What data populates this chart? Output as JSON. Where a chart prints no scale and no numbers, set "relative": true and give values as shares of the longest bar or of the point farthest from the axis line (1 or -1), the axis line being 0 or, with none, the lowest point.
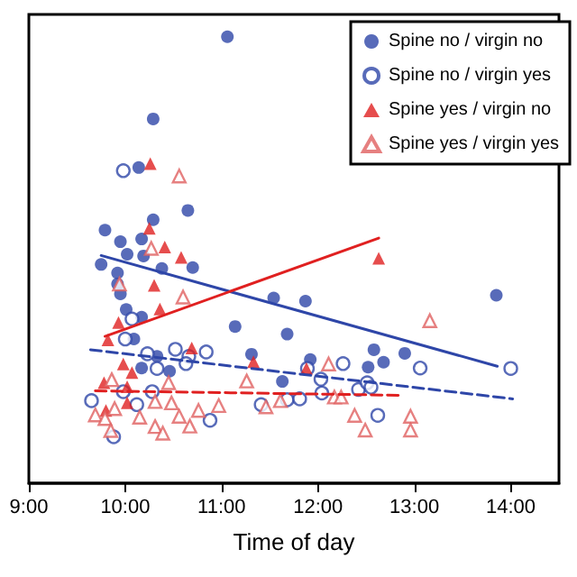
{
  "chart_data": {
    "type": "scatter",
    "xlabel": "Time of day",
    "relative": true,
    "legend": "top right",
    "grid": false,
    "xlim": [
      9,
      14.5
    ],
    "xticks": [
      {
        "value": 9,
        "label": "9:00"
      },
      {
        "value": 10,
        "label": "10:00"
      },
      {
        "value": 11,
        "label": "11:00"
      },
      {
        "value": 12,
        "label": "12:00"
      },
      {
        "value": 13,
        "label": "13:00"
      },
      {
        "value": 14,
        "label": "14:00"
      }
    ],
    "series": [
      {
        "name": "Spine no / virgin no",
        "color": "#2e46a8",
        "marker": "circle",
        "x": [
          11.06,
          10.29,
          10.14,
          10.65,
          10.29,
          9.79,
          9.95,
          10.17,
          10.02,
          10.19,
          9.75,
          9.92,
          10.38,
          10.7,
          9.92,
          9.95,
          10.01,
          10.17,
          10.09,
          10.33,
          10.17,
          10.46,
          11.54,
          11.87,
          11.14,
          11.68,
          11.31,
          11.92,
          11.63,
          12.58,
          12.9,
          12.68,
          12.52,
          13.85
        ],
        "values": [
          1.0,
          0.816,
          0.707,
          0.611,
          0.59,
          0.567,
          0.541,
          0.547,
          0.513,
          0.509,
          0.49,
          0.471,
          0.481,
          0.483,
          0.446,
          0.424,
          0.389,
          0.372,
          0.323,
          0.284,
          0.258,
          0.251,
          0.415,
          0.408,
          0.351,
          0.334,
          0.289,
          0.277,
          0.228,
          0.299,
          0.291,
          0.271,
          0.26,
          0.421
        ]
      },
      {
        "name": "Spine no / virgin yes",
        "color": "#2e46a8",
        "marker": "circle-open",
        "x": [
          9.98,
          10.07,
          10.0,
          10.23,
          10.33,
          10.52,
          10.66,
          10.63,
          10.84,
          9.65,
          9.98,
          10.12,
          10.28,
          9.88,
          10.88,
          11.41,
          11.68,
          11.81,
          12.03,
          12.04,
          12.26,
          12.42,
          12.51,
          12.55,
          12.62,
          13.06,
          14.0,
          11.89
        ],
        "values": [
          0.7,
          0.368,
          0.323,
          0.29,
          0.257,
          0.3,
          0.284,
          0.268,
          0.294,
          0.185,
          0.205,
          0.176,
          0.205,
          0.104,
          0.141,
          0.176,
          0.187,
          0.189,
          0.233,
          0.202,
          0.268,
          0.21,
          0.225,
          0.215,
          0.152,
          0.258,
          0.257,
          0.257
        ]
      },
      {
        "name": "Spine yes / virgin no",
        "color": "#e02020",
        "marker": "triangle",
        "x": [
          10.26,
          10.25,
          10.41,
          10.58,
          12.63,
          10.3,
          10.36,
          9.93,
          9.82,
          9.98,
          10.07,
          9.78,
          10.02,
          9.8,
          10.02,
          10.69,
          11.33,
          11.88
        ],
        "values": [
          0.716,
          0.571,
          0.529,
          0.506,
          0.504,
          0.443,
          0.39,
          0.36,
          0.321,
          0.267,
          0.248,
          0.225,
          0.216,
          0.163,
          0.18,
          0.303,
          0.272,
          0.257
        ]
      },
      {
        "name": "Spine yes / virgin yes",
        "color": "#e06060",
        "marker": "triangle-open",
        "x": [
          10.56,
          10.27,
          9.94,
          10.6,
          12.11,
          13.16,
          11.26,
          10.45,
          9.86,
          9.69,
          9.79,
          9.89,
          9.85,
          10.15,
          10.31,
          10.48,
          10.31,
          10.39,
          10.56,
          10.67,
          10.76,
          10.97,
          11.46,
          11.61,
          12.17,
          12.24,
          12.38,
          12.49,
          12.96,
          12.96
        ],
        "values": [
          0.688,
          0.526,
          0.446,
          0.417,
          0.267,
          0.364,
          0.229,
          0.225,
          0.232,
          0.153,
          0.145,
          0.167,
          0.118,
          0.148,
          0.183,
          0.18,
          0.127,
          0.112,
          0.15,
          0.128,
          0.163,
          0.174,
          0.171,
          0.185,
          0.193,
          0.193,
          0.152,
          0.119,
          0.15,
          0.119
        ]
      },
      {
        "type": "line",
        "color": "#2e46a8",
        "line_style": "solid",
        "x": [
          9.75,
          13.86
        ],
        "values": [
          0.51,
          0.262
        ]
      },
      {
        "type": "line",
        "color": "#e02020",
        "line_style": "solid",
        "x": [
          9.79,
          12.63
        ],
        "values": [
          0.329,
          0.549
        ]
      },
      {
        "type": "line",
        "color": "#2e46a8",
        "line_style": "dashed",
        "x": [
          9.64,
          14.02
        ],
        "values": [
          0.299,
          0.189
        ]
      },
      {
        "type": "line",
        "color": "#e02020",
        "line_style": "dashed",
        "x": [
          9.69,
          12.86
        ],
        "values": [
          0.207,
          0.197
        ]
      }
    ]
  }
}
